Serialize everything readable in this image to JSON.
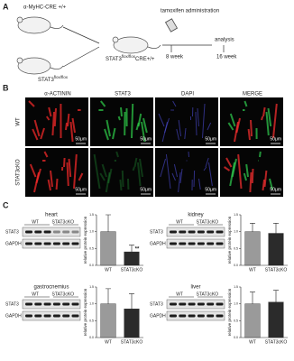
{
  "panel_a": {
    "label": "A",
    "mouse_top": "α-MyHC-CRE +/+",
    "mouse_bottom": {
      "base": "STAT3",
      "sup": "flox/flox"
    },
    "mouse_cross": {
      "base": "STAT3",
      "sup": "flox/flox",
      "tail": "CRE+/+"
    },
    "treatment": "tamoxifen administration",
    "start": "8 week",
    "analysis": "analysis",
    "end": "16 week"
  },
  "panel_b": {
    "label": "B",
    "columns": [
      "α-ACTININ",
      "STAT3",
      "DAPI",
      "MERGE"
    ],
    "rows": [
      "WT",
      "STAT3cKO"
    ],
    "scale_bars": [
      "50μm",
      "50μm",
      "50μm",
      "50μm",
      "50μm",
      "50μm",
      "50μm",
      "50μm"
    ]
  },
  "panel_c": {
    "label": "C",
    "blots": [
      {
        "title": "heart",
        "lanes": [
          "WT",
          "STAT3cKO"
        ],
        "proteins": [
          "STAT3",
          "GAPDH"
        ]
      },
      {
        "title": "kidney",
        "lanes": [
          "WT",
          "STAT3cKO"
        ],
        "proteins": [
          "STAT3",
          "GAPDH"
        ]
      },
      {
        "title": "gastrocnemius",
        "lanes": [
          "WT",
          "STAT3cKO"
        ],
        "proteins": [
          "STAT3",
          "GAPDH"
        ]
      },
      {
        "title": "liver",
        "lanes": [
          "WT",
          "STAT3cKO"
        ],
        "proteins": [
          "STAT3",
          "GAPDH"
        ]
      }
    ]
  },
  "chart_data": [
    {
      "type": "bar",
      "y_label": "relative protein expression",
      "categories": [
        "WT",
        "STAT3cKO"
      ],
      "values": [
        1.0,
        0.4
      ],
      "errors": [
        0.5,
        0.2
      ],
      "colors": [
        "#9a9a9a",
        "#2b2b2b"
      ],
      "annotation": "**",
      "ylim": [
        0,
        1.5
      ],
      "yticks": [
        {
          "value": 0,
          "label": "0.0"
        },
        0.5,
        {
          "value": 1,
          "label": "1.0"
        },
        1.5
      ]
    },
    {
      "type": "bar",
      "y_label": "relative protein expression",
      "categories": [
        "WT",
        "STAT3cKO"
      ],
      "values": [
        1.0,
        0.95
      ],
      "errors": [
        0.25,
        0.3
      ],
      "colors": [
        "#9a9a9a",
        "#2b2b2b"
      ],
      "ylim": [
        0,
        1.5
      ],
      "yticks": [
        {
          "value": 0,
          "label": "0.0"
        },
        0.5,
        {
          "value": 1,
          "label": "1.0"
        },
        1.5
      ]
    },
    {
      "type": "bar",
      "y_label": "relative protein expression",
      "categories": [
        "WT",
        "STAT3cKO"
      ],
      "values": [
        1.0,
        0.85
      ],
      "errors": [
        0.45,
        0.45
      ],
      "colors": [
        "#9a9a9a",
        "#2b2b2b"
      ],
      "ylim": [
        0,
        1.5
      ],
      "yticks": [
        {
          "value": 0,
          "label": "0.0"
        },
        0.5,
        {
          "value": 1,
          "label": "1.0"
        },
        1.5
      ]
    },
    {
      "type": "bar",
      "y_label": "relative protein expression",
      "categories": [
        "WT",
        "STAT3cKO"
      ],
      "values": [
        1.0,
        1.05
      ],
      "errors": [
        0.35,
        0.35
      ],
      "colors": [
        "#9a9a9a",
        "#2b2b2b"
      ],
      "ylim": [
        0,
        1.5
      ],
      "yticks": [
        {
          "value": 0,
          "label": "0.0"
        },
        0.5,
        {
          "value": 1,
          "label": "1.0"
        },
        1.5
      ]
    }
  ]
}
